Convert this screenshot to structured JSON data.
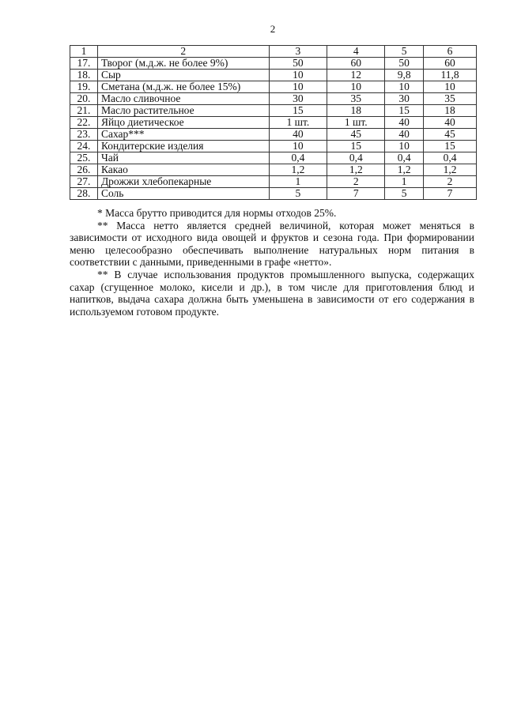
{
  "page_number": "2",
  "table": {
    "header": [
      "1",
      "2",
      "3",
      "4",
      "5",
      "6"
    ],
    "rows": [
      [
        "17.",
        "Творог (м.д.ж. не более 9%)",
        "50",
        "60",
        "50",
        "60"
      ],
      [
        "18.",
        "Сыр",
        "10",
        "12",
        "9,8",
        "11,8"
      ],
      [
        "19.",
        "Сметана (м.д.ж. не более 15%)",
        "10",
        "10",
        "10",
        "10"
      ],
      [
        "20.",
        "Масло сливочное",
        "30",
        "35",
        "30",
        "35"
      ],
      [
        "21.",
        "Масло растительное",
        "15",
        "18",
        "15",
        "18"
      ],
      [
        "22.",
        "Яйцо диетическое",
        "1 шт.",
        "1 шт.",
        "40",
        "40"
      ],
      [
        "23.",
        "Сахар***",
        "40",
        "45",
        "40",
        "45"
      ],
      [
        "24.",
        "Кондитерские изделия",
        "10",
        "15",
        "10",
        "15"
      ],
      [
        "25.",
        "Чай",
        "0,4",
        "0,4",
        "0,4",
        "0,4"
      ],
      [
        "26.",
        "Какао",
        "1,2",
        "1,2",
        "1,2",
        "1,2"
      ],
      [
        "27.",
        "Дрожжи хлебопекарные",
        "1",
        "2",
        "1",
        "2"
      ],
      [
        "28.",
        "Соль",
        "5",
        "7",
        "5",
        "7"
      ]
    ]
  },
  "notes": [
    "* Масса брутто приводится для нормы отходов 25%.",
    "** Масса нетто является средней величиной, которая может меняться в зависимости от исходного вида овощей и фруктов и сезона года. При формировании меню целесообразно обеспечивать выполнение натуральных норм питания в соответствии с данными, приведенными в графе «нетто».",
    "** В случае использования продуктов промышленного выпуска, содержащих сахар (сгущенное молоко, кисели и др.), в том числе для приготовления блюд и напитков, выдача сахара должна быть уменьшена в зависимости от его содержания в используемом готовом продукте."
  ]
}
